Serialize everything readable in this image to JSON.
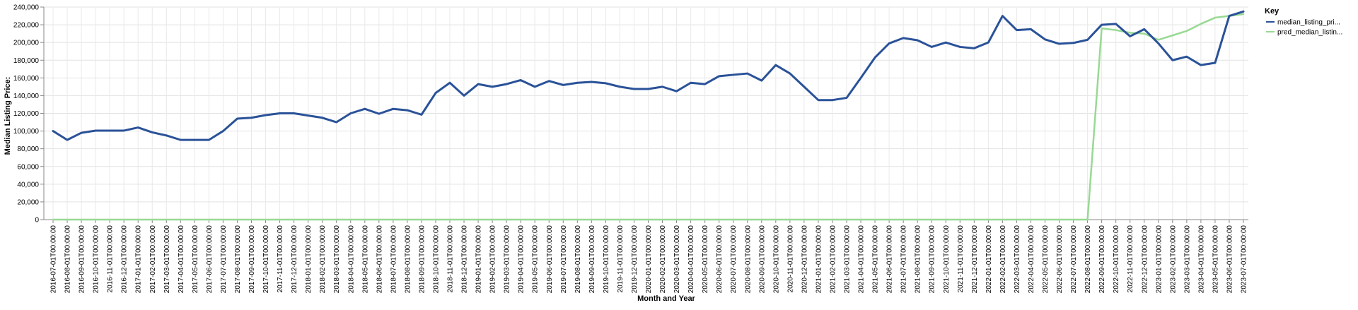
{
  "chart_data": {
    "type": "line",
    "xlabel": "Month and Year",
    "ylabel": "Median Listing Price:",
    "ylim": [
      0,
      240000
    ],
    "yticks": [
      0,
      20000,
      40000,
      60000,
      80000,
      100000,
      120000,
      140000,
      160000,
      180000,
      200000,
      220000,
      240000
    ],
    "ytick_labels": [
      "0",
      "20,000",
      "40,000",
      "60,000",
      "80,000",
      "100,000",
      "120,000",
      "140,000",
      "160,000",
      "180,000",
      "200,000",
      "220,000",
      "240,000"
    ],
    "grid": true,
    "legend": {
      "title": "Key",
      "position": "right"
    },
    "x": [
      "2016-07-01T00:00:00",
      "2016-08-01T00:00:00",
      "2016-09-01T00:00:00",
      "2016-10-01T00:00:00",
      "2016-11-01T00:00:00",
      "2016-12-01T00:00:00",
      "2017-01-01T00:00:00",
      "2017-02-01T00:00:00",
      "2017-03-01T00:00:00",
      "2017-04-01T00:00:00",
      "2017-05-01T00:00:00",
      "2017-06-01T00:00:00",
      "2017-07-01T00:00:00",
      "2017-08-01T00:00:00",
      "2017-09-01T00:00:00",
      "2017-10-01T00:00:00",
      "2017-11-01T00:00:00",
      "2017-12-01T00:00:00",
      "2018-01-01T00:00:00",
      "2018-02-01T00:00:00",
      "2018-03-01T00:00:00",
      "2018-04-01T00:00:00",
      "2018-05-01T00:00:00",
      "2018-06-01T00:00:00",
      "2018-07-01T00:00:00",
      "2018-08-01T00:00:00",
      "2018-09-01T00:00:00",
      "2018-10-01T00:00:00",
      "2018-11-01T00:00:00",
      "2018-12-01T00:00:00",
      "2019-01-01T00:00:00",
      "2019-02-01T00:00:00",
      "2019-03-01T00:00:00",
      "2019-04-01T00:00:00",
      "2019-05-01T00:00:00",
      "2019-06-01T00:00:00",
      "2019-07-01T00:00:00",
      "2019-08-01T00:00:00",
      "2019-09-01T00:00:00",
      "2019-10-01T00:00:00",
      "2019-11-01T00:00:00",
      "2019-12-01T00:00:00",
      "2020-01-01T00:00:00",
      "2020-02-01T00:00:00",
      "2020-03-01T00:00:00",
      "2020-04-01T00:00:00",
      "2020-05-01T00:00:00",
      "2020-06-01T00:00:00",
      "2020-07-01T00:00:00",
      "2020-08-01T00:00:00",
      "2020-09-01T00:00:00",
      "2020-10-01T00:00:00",
      "2020-11-01T00:00:00",
      "2020-12-01T00:00:00",
      "2021-01-01T00:00:00",
      "2021-02-01T00:00:00",
      "2021-03-01T00:00:00",
      "2021-04-01T00:00:00",
      "2021-05-01T00:00:00",
      "2021-06-01T00:00:00",
      "2021-07-01T00:00:00",
      "2021-08-01T00:00:00",
      "2021-09-01T00:00:00",
      "2021-10-01T00:00:00",
      "2021-11-01T00:00:00",
      "2021-12-01T00:00:00",
      "2022-01-01T00:00:00",
      "2022-02-01T00:00:00",
      "2022-03-01T00:00:00",
      "2022-04-01T00:00:00",
      "2022-05-01T00:00:00",
      "2022-06-01T00:00:00",
      "2022-07-01T00:00:00",
      "2022-08-01T00:00:00",
      "2022-09-01T00:00:00",
      "2022-10-01T00:00:00",
      "2022-11-01T00:00:00",
      "2022-12-01T00:00:00",
      "2023-01-01T00:00:00",
      "2023-02-01T00:00:00",
      "2023-03-01T00:00:00",
      "2023-04-01T00:00:00",
      "2023-05-01T00:00:00",
      "2023-06-01T00:00:00",
      "2023-07-01T00:00:00"
    ],
    "series": [
      {
        "name": "median_listing_pri...",
        "color": "#2a5298",
        "values": [
          100000,
          90000,
          98000,
          100500,
          100500,
          100500,
          104000,
          98500,
          95000,
          90000,
          90000,
          90000,
          100000,
          114000,
          115000,
          118000,
          120000,
          120000,
          117500,
          115000,
          110000,
          120000,
          125000,
          119500,
          125000,
          123500,
          118500,
          143000,
          154500,
          140000,
          153000,
          150000,
          153000,
          157500,
          150000,
          156500,
          152000,
          154500,
          155500,
          154000,
          150000,
          147500,
          147500,
          150000,
          145000,
          154500,
          153000,
          162000,
          163500,
          165000,
          157000,
          174500,
          165000,
          150000,
          135000,
          135000,
          137500,
          160000,
          183000,
          199000,
          205000,
          202500,
          195000,
          200000,
          195000,
          193500,
          200000,
          230000,
          214000,
          215000,
          203500,
          198500,
          199500,
          203000,
          220000,
          221000,
          207000,
          215000,
          199000,
          180000,
          184000,
          174500,
          177000,
          230000,
          235000
        ]
      },
      {
        "name": "pred_median_listin...",
        "color": "#98d994",
        "values": [
          0,
          0,
          0,
          0,
          0,
          0,
          0,
          0,
          0,
          0,
          0,
          0,
          0,
          0,
          0,
          0,
          0,
          0,
          0,
          0,
          0,
          0,
          0,
          0,
          0,
          0,
          0,
          0,
          0,
          0,
          0,
          0,
          0,
          0,
          0,
          0,
          0,
          0,
          0,
          0,
          0,
          0,
          0,
          0,
          0,
          0,
          0,
          0,
          0,
          0,
          0,
          0,
          0,
          0,
          0,
          0,
          0,
          0,
          0,
          0,
          0,
          0,
          0,
          0,
          0,
          0,
          0,
          0,
          0,
          0,
          0,
          0,
          0,
          0,
          216000,
          214000,
          211000,
          210000,
          203000,
          208000,
          213000,
          221000,
          228000,
          230000,
          232000
        ]
      }
    ]
  }
}
